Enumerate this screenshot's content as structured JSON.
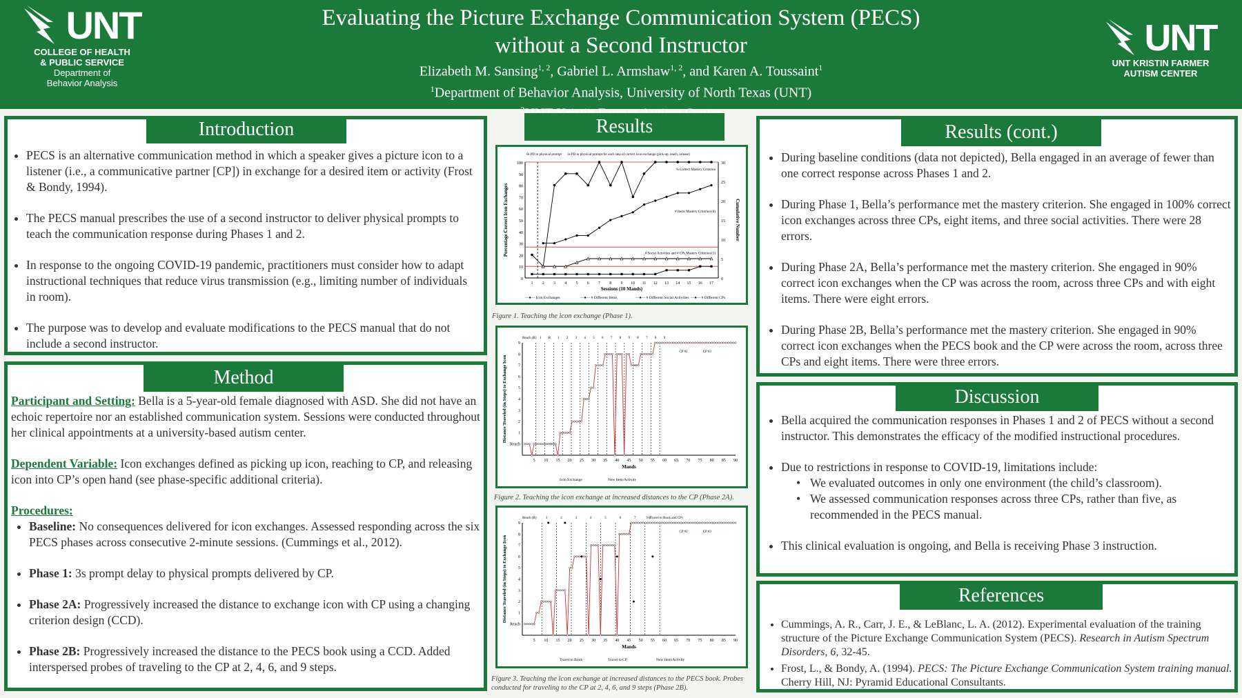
{
  "header": {
    "title_line1": "Evaluating the Picture Exchange Communication System (PECS)",
    "title_line2": "without a Second Instructor",
    "authors": [
      {
        "name": "Elizabeth M. Sansing",
        "sup": "1, 2"
      },
      {
        "name": "Gabriel L. Armshaw",
        "sup": "1, 2"
      },
      {
        "name": "Karen A. Toussaint",
        "sup": "1"
      }
    ],
    "aff1": "Department of Behavior Analysis, University of North Texas (UNT)",
    "aff2": "UNT Kristin Farmer Autism Center",
    "left_logo": {
      "text": "UNT",
      "line1": "COLLEGE OF HEALTH",
      "line2": "& PUBLIC SERVICE",
      "line3": "Department of",
      "line4": "Behavior Analysis"
    },
    "right_logo": {
      "text": "UNT",
      "line1": "UNT KRISTIN FARMER",
      "line2": "AUTISM CENTER"
    }
  },
  "intro": {
    "heading": "Introduction",
    "bullets": [
      "PECS is an alternative communication method in which a speaker gives a picture icon to a listener (i.e., a communicative partner [CP]) in exchange for a desired item or activity (Frost & Bondy, 1994).",
      "The PECS manual prescribes the use of a second instructor to deliver physical prompts to teach the communication response during Phases 1 and 2.",
      "In response to the ongoing COVID-19 pandemic, practitioners must consider how to adapt instructional techniques that reduce virus transmission (e.g., limiting number of individuals in room).",
      "The purpose was to develop and evaluate modifications to the PECS manual that do not include a second instructor."
    ]
  },
  "method": {
    "heading": "Method",
    "participant_label": "Participant and Setting:",
    "participant_text": " Bella is a 5-year-old female diagnosed with ASD. She did not have an echoic repertoire nor an established communication system.  Sessions were conducted throughout her clinical appointments at a university-based autism center.",
    "dv_label": "Dependent Variable:",
    "dv_text": " Icon exchanges defined as picking up icon, reaching to CP, and releasing icon into CP’s open hand (see phase-specific additional criteria).",
    "proc_label": "Procedures:",
    "procedures": [
      {
        "label": "Baseline:",
        "text": " No consequences delivered for icon exchanges. Assessed responding across the six PECS phases across consecutive 2-minute sessions. (Cummings et al., 2012)."
      },
      {
        "label": "Phase 1:",
        "text": " 3s prompt delay to physical prompts delivered by CP."
      },
      {
        "label": "Phase 2A:",
        "text": " Progressively increased the distance to exchange icon with CP using a changing criterion design (CCD)."
      },
      {
        "label": "Phase 2B:",
        "text": " Progressively increased the distance to the PECS book using a CCD. Added interspersed probes of traveling to the CP at 2, 4, 6, and 9 steps."
      }
    ]
  },
  "results": {
    "heading": "Results",
    "fig1_caption_label": "Figure 1.",
    "fig1_caption": " Teaching the icon exchange (Phase 1).",
    "fig2_caption_label": "Figure 2.",
    "fig2_caption": " Teaching the icon exchange at increased distances to the CP (Phase 2A).",
    "fig3_caption_label": "Figure 3.",
    "fig3_caption": " Teaching the icon exchange at increased distances to the PECS book. Probes conducted for traveling to the CP at 2, 4, 6, and 9 steps (Phase 2B)."
  },
  "results_cont": {
    "heading": "Results (cont.)",
    "bullets": [
      "During baseline conditions (data not depicted), Bella engaged in an average of fewer than one correct response across Phases 1 and 2.",
      "During Phase 1, Bella’s performance met the mastery criterion. She engaged in 100% correct icon exchanges across three CPs, eight items, and three social activities. There were 28 errors.",
      "During Phase 2A, Bella’s performance met the mastery criterion. She engaged in 90% correct icon exchanges when the CP was across the room, across three CPs and with eight items. There were eight errors.",
      "During Phase 2B, Bella’s performance met the mastery criterion. She engaged in 90% correct icon exchanges when the PECS book and the CP were across the room, across three CPs and eight items. There were three errors."
    ]
  },
  "discussion": {
    "heading": "Discussion",
    "b1": "Bella acquired the communication responses in Phases 1 and 2 of PECS without a second instructor. This demonstrates the efficacy of the modified instructional procedures.",
    "b2": "Due to restrictions in response to COVID-19, limitations include:",
    "sub": [
      "We evaluated outcomes in only one environment (the child’s classroom).",
      "We assessed communication responses across three CPs, rather than five, as recommended in the PECS manual."
    ],
    "b3": "This clinical evaluation is ongoing, and Bella is receiving Phase 3 instruction."
  },
  "references": {
    "heading": "References",
    "r1_a": "Cummings, A. R., Carr, J. E., & LeBlanc, L. A. (2012). Experimental evaluation of the training structure of the Picture Exchange Communication System (PECS). ",
    "r1_journal": "Research in Autism Spectrum Disorders, 6,",
    "r1_b": " 32-45.",
    "r2_a": "Frost, L., & Bondy, A. (1994). ",
    "r2_title": "PECS: The Picture Exchange Communication System training manual.",
    "r2_b": " Cherry Hill, NJ: Pyramid Educational Consultants."
  },
  "chart_data": [
    {
      "type": "line",
      "title": "",
      "xlabel": "Sessions (10 Mands)",
      "ylabel": "Percentage Correct Icon Exchanges",
      "y2label": "Cumulative Number",
      "x": [
        1,
        2,
        3,
        4,
        5,
        6,
        7,
        8,
        9,
        10,
        11,
        12,
        13,
        14,
        15,
        16,
        17
      ],
      "ylim": [
        0,
        100
      ],
      "y2lim": [
        0,
        30
      ],
      "series": [
        {
          "name": "Icon Exchanges",
          "axis": "left",
          "values": [
            20,
            10,
            80,
            90,
            90,
            80,
            100,
            80,
            100,
            70,
            90,
            100,
            100,
            100,
            100,
            100,
            100
          ]
        },
        {
          "name": "# Different Items",
          "axis": "right",
          "values": [
            null,
            9,
            9,
            10,
            11,
            11,
            13,
            15,
            16,
            17,
            19,
            20,
            21,
            22,
            22,
            23,
            24
          ]
        },
        {
          "name": "# Different Social Activities",
          "axis": "right",
          "values": [
            null,
            3,
            3,
            3,
            4,
            5,
            5,
            5,
            5,
            5,
            5,
            5,
            5,
            5,
            5,
            5,
            5
          ]
        },
        {
          "name": "# Different CPs",
          "axis": "right",
          "values": [
            1,
            1,
            1,
            1,
            1,
            1,
            1,
            1,
            1,
            1,
            1,
            1,
            2,
            2,
            2,
            3,
            3
          ]
        }
      ],
      "annotations": [
        "0s PD to physical prompt",
        "3s PD to physical prompt for each step of correct icon exchange (pick-up, reach, release)",
        "% Correct Mastery Criterion",
        "# Items Mastery Criterion (8)",
        "# Social Activities and # CPs Mastery Criterion (3)"
      ],
      "xticks": [
        "1",
        "2",
        "3",
        "4",
        "5",
        "6",
        "7",
        "8",
        "9",
        "10",
        "11",
        "12",
        "13",
        "14",
        "15",
        "16",
        "17"
      ],
      "yticks": [
        "0",
        "10",
        "20",
        "30",
        "40",
        "50",
        "60",
        "70",
        "80",
        "90",
        "100"
      ],
      "y2ticks": [
        "0",
        "5",
        "10",
        "15",
        "20",
        "25",
        "30"
      ]
    },
    {
      "type": "line",
      "title": "",
      "xlabel": "Mands",
      "ylabel": "Distance Traveled (in Steps) to Exchange Icon",
      "xlim": [
        0,
        90
      ],
      "ylim": [
        0,
        9
      ],
      "xticks": [
        "5",
        "10",
        "15",
        "20",
        "25",
        "30",
        "35",
        "40",
        "45",
        "50",
        "55",
        "60",
        "65",
        "70",
        "75",
        "80",
        "85",
        "90"
      ],
      "yticks": [
        "Reach",
        "1",
        "2",
        "3",
        "4",
        "5",
        "6",
        "7",
        "8",
        "9"
      ],
      "phase_labels": [
        "Reach (R)",
        "1",
        "R",
        "1",
        "2",
        "3",
        "4",
        "5",
        "6",
        "7",
        "8",
        "9",
        "8",
        "7",
        "8",
        "9"
      ],
      "annotations": [
        "CP #2",
        "CP #3"
      ],
      "series": [
        {
          "name": "Icon Exchange",
          "x": [
            1,
            2,
            3,
            4,
            5,
            6,
            7,
            8,
            9,
            10,
            11,
            12,
            13,
            14,
            15,
            16,
            17,
            18,
            19,
            20,
            21,
            22,
            23,
            24,
            25,
            26,
            27,
            28,
            29,
            30,
            31,
            32,
            33,
            34,
            35,
            36,
            37,
            38,
            39,
            40,
            41,
            42,
            43,
            44,
            45,
            46,
            47,
            48,
            49,
            50,
            51,
            52,
            53,
            54,
            55,
            56,
            57,
            58,
            59,
            60,
            61,
            62,
            63,
            64,
            65,
            66,
            67,
            68,
            69,
            70,
            71,
            72,
            73,
            74,
            75,
            76,
            77,
            78,
            79,
            80,
            81,
            82,
            83,
            84,
            85,
            86,
            87,
            88,
            89,
            90
          ],
          "values": [
            0,
            0,
            0,
            -1,
            0,
            0,
            0,
            0,
            0,
            0,
            0,
            0,
            0,
            0,
            -1,
            1,
            1,
            1,
            1,
            1,
            2,
            2,
            2,
            2,
            2,
            4,
            4,
            4,
            5,
            5,
            7,
            7,
            7,
            7,
            8,
            8,
            8,
            8,
            -1,
            8,
            8,
            8,
            -1,
            8,
            8,
            7,
            7,
            7,
            7,
            8,
            8,
            8,
            8,
            8,
            8,
            9,
            9,
            9,
            9,
            9,
            9,
            9,
            9,
            9,
            9,
            9,
            9,
            9,
            9,
            9,
            9,
            9,
            9,
            9,
            9,
            9,
            9,
            9,
            9,
            9,
            9,
            9,
            9,
            9,
            9,
            9,
            9,
            9,
            9,
            9
          ]
        }
      ],
      "legend": [
        "Icon Exchange",
        "New Item/Activity"
      ]
    },
    {
      "type": "line",
      "title": "",
      "xlabel": "Mands",
      "ylabel": "Distance Traveled (in Steps) to Exchange Icon",
      "xlim": [
        0,
        90
      ],
      "ylim": [
        0,
        9
      ],
      "xticks": [
        "5",
        "10",
        "15",
        "20",
        "25",
        "30",
        "35",
        "40",
        "45",
        "50",
        "55",
        "60",
        "65",
        "70",
        "75",
        "80",
        "85",
        "90"
      ],
      "yticks": [
        "Reach",
        "1",
        "2",
        "3",
        "4",
        "5",
        "6",
        "7",
        "8",
        "9"
      ],
      "phase_labels": [
        "Reach (R)",
        "1",
        "2",
        "3",
        "4",
        "5",
        "6",
        "7",
        "8",
        "9 (Travel to Book and CP)"
      ],
      "annotations": [
        "CP #2",
        "CP #3"
      ],
      "series": [
        {
          "name": "Travel to Book",
          "x": [
            1,
            2,
            3,
            4,
            5,
            6,
            7,
            8,
            9,
            10,
            11,
            12,
            13,
            14,
            15,
            16,
            17,
            18,
            19,
            20,
            21,
            22,
            23,
            24,
            25,
            26,
            27,
            28,
            29,
            30,
            31,
            32,
            33,
            34,
            35,
            36,
            37,
            38,
            39,
            40,
            41,
            42,
            43,
            44,
            45,
            46,
            47,
            48,
            49,
            50,
            51,
            52,
            53,
            54,
            55,
            56,
            57,
            58,
            59,
            60,
            61,
            62,
            63,
            64,
            65,
            66,
            67,
            68,
            69,
            70,
            71,
            72,
            73,
            74,
            75,
            76,
            77,
            78,
            79,
            80,
            81,
            82,
            83,
            84,
            85,
            86,
            87,
            88,
            89,
            90
          ],
          "values": [
            0,
            0,
            0,
            0,
            0,
            1,
            1,
            2,
            2,
            2,
            2,
            2,
            -1,
            3,
            3,
            3,
            3,
            3,
            -1,
            5,
            5,
            6,
            6,
            6,
            6,
            6,
            6,
            -1,
            7,
            7,
            7,
            7,
            -1,
            7,
            7,
            7,
            7,
            7,
            7,
            -1,
            8,
            8,
            8,
            8,
            8,
            9,
            9,
            9,
            9,
            9,
            9,
            9,
            9,
            9,
            9,
            9,
            9,
            9,
            9,
            9,
            9,
            9,
            9,
            9,
            9,
            9,
            9,
            9,
            9,
            9,
            9,
            9,
            9,
            9,
            9,
            9,
            9,
            9,
            9,
            9,
            9,
            9,
            9,
            9,
            9,
            9,
            9,
            9,
            9,
            9
          ]
        },
        {
          "name": "Travel to CP",
          "x": [
            11,
            18,
            25,
            33,
            40,
            47,
            55
          ],
          "values": [
            9,
            9,
            6,
            4,
            6,
            2,
            6
          ]
        }
      ],
      "legend": [
        "Travel to Book",
        "Travel to CP",
        "New Item/Activity"
      ]
    }
  ]
}
